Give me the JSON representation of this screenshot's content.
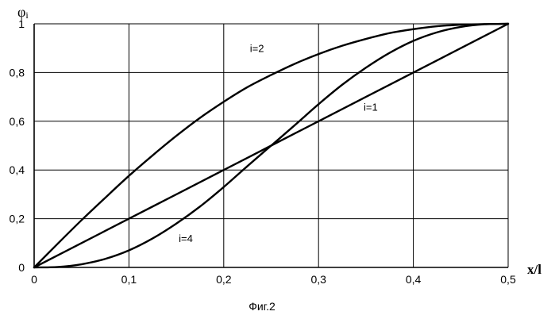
{
  "chart_data": {
    "type": "line",
    "ylabel": "φ",
    "ylabel_sub": "i",
    "xlabel": "x/l",
    "caption": "Фиг.2",
    "xlim": [
      0,
      0.5
    ],
    "ylim": [
      0,
      1
    ],
    "grid": true,
    "xticks": [
      0,
      0.1,
      0.2,
      0.3,
      0.4,
      0.5
    ],
    "xtick_labels": [
      "0",
      "0,1",
      "0,2",
      "0,3",
      "0,4",
      "0,5"
    ],
    "yticks": [
      0,
      0.2,
      0.4,
      0.6,
      0.8,
      1
    ],
    "ytick_labels": [
      "0",
      "0,2",
      "0,4",
      "0,6",
      "0,8",
      "1"
    ],
    "series": [
      {
        "name": "i=1",
        "x": [
          0,
          0.05,
          0.1,
          0.15,
          0.2,
          0.25,
          0.3,
          0.35,
          0.4,
          0.45,
          0.5
        ],
        "y": [
          0,
          0.1,
          0.2,
          0.3,
          0.4,
          0.5,
          0.6,
          0.7,
          0.8,
          0.9,
          1.0
        ]
      },
      {
        "name": "i=2",
        "x": [
          0,
          0.025,
          0.05,
          0.075,
          0.1,
          0.125,
          0.15,
          0.175,
          0.2,
          0.225,
          0.25,
          0.275,
          0.3,
          0.325,
          0.35,
          0.375,
          0.4,
          0.425,
          0.45,
          0.475,
          0.5
        ],
        "y": [
          0,
          0.098,
          0.194,
          0.286,
          0.376,
          0.46,
          0.54,
          0.614,
          0.68,
          0.74,
          0.79,
          0.836,
          0.876,
          0.91,
          0.938,
          0.962,
          0.978,
          0.99,
          0.996,
          0.999,
          1.0
        ]
      },
      {
        "name": "i=4",
        "x": [
          0,
          0.025,
          0.05,
          0.075,
          0.1,
          0.125,
          0.15,
          0.175,
          0.2,
          0.225,
          0.25,
          0.275,
          0.3,
          0.325,
          0.35,
          0.375,
          0.4,
          0.425,
          0.45,
          0.475,
          0.5
        ],
        "y": [
          0,
          0.002,
          0.013,
          0.035,
          0.07,
          0.119,
          0.18,
          0.25,
          0.33,
          0.416,
          0.5,
          0.584,
          0.67,
          0.75,
          0.82,
          0.881,
          0.93,
          0.965,
          0.987,
          0.998,
          1.0
        ]
      }
    ],
    "curve_labels": [
      {
        "text": "i=2",
        "x": 0.235,
        "y": 0.9
      },
      {
        "text": "i=1",
        "x": 0.355,
        "y": 0.66
      },
      {
        "text": "i=4",
        "x": 0.16,
        "y": 0.12
      }
    ]
  }
}
